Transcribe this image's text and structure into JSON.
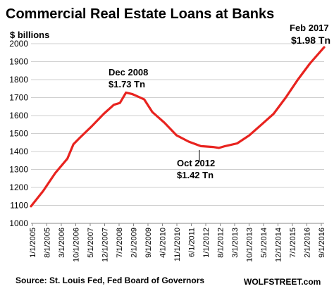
{
  "chart_data": {
    "type": "line",
    "title": "Commercial Real Estate Loans at Banks",
    "ylabel": "$ billions",
    "ylim": [
      1000,
      2000
    ],
    "yticks": [
      1000,
      1100,
      1200,
      1300,
      1400,
      1500,
      1600,
      1700,
      1800,
      1900,
      2000
    ],
    "grid": "horizontal",
    "x_tick_labels": [
      "1/1/2005",
      "8/1/2005",
      "3/1/2006",
      "10/1/2006",
      "5/1/2007",
      "12/1/2007",
      "7/1/2008",
      "2/1/2009",
      "9/1/2009",
      "4/1/2010",
      "11/1/2010",
      "6/1/2011",
      "1/1/2012",
      "8/1/2012",
      "3/1/2013",
      "10/1/2013",
      "5/1/2014",
      "12/1/2014",
      "7/1/2015",
      "2/1/2016",
      "9/1/2016"
    ],
    "series_color": "#e8231f",
    "x": [
      "2005-01",
      "2005-07",
      "2006-01",
      "2006-07",
      "2006-10",
      "2007-01",
      "2007-07",
      "2008-01",
      "2008-06",
      "2008-09",
      "2008-12",
      "2009-03",
      "2009-06",
      "2009-09",
      "2010-01",
      "2010-07",
      "2011-01",
      "2011-07",
      "2012-01",
      "2012-07",
      "2012-10",
      "2013-01",
      "2013-07",
      "2014-01",
      "2014-07",
      "2015-01",
      "2015-07",
      "2016-01",
      "2016-07",
      "2017-02"
    ],
    "values": [
      1095,
      1180,
      1280,
      1360,
      1440,
      1475,
      1540,
      1610,
      1660,
      1670,
      1728,
      1720,
      1705,
      1690,
      1620,
      1560,
      1490,
      1455,
      1430,
      1425,
      1420,
      1430,
      1445,
      1490,
      1550,
      1610,
      1700,
      1800,
      1890,
      1980
    ],
    "annotations": [
      {
        "line1": "Dec 2008",
        "line2": "$1.73 Tn"
      },
      {
        "line1": "Oct 2012",
        "line2": "$1.42 Tn"
      },
      {
        "line1": "Feb 2017",
        "line2": "$1.98 Tn"
      }
    ],
    "source": "Source: St. Louis Fed, Fed Board of Governors",
    "watermark": "WOLFSTREET.com"
  }
}
